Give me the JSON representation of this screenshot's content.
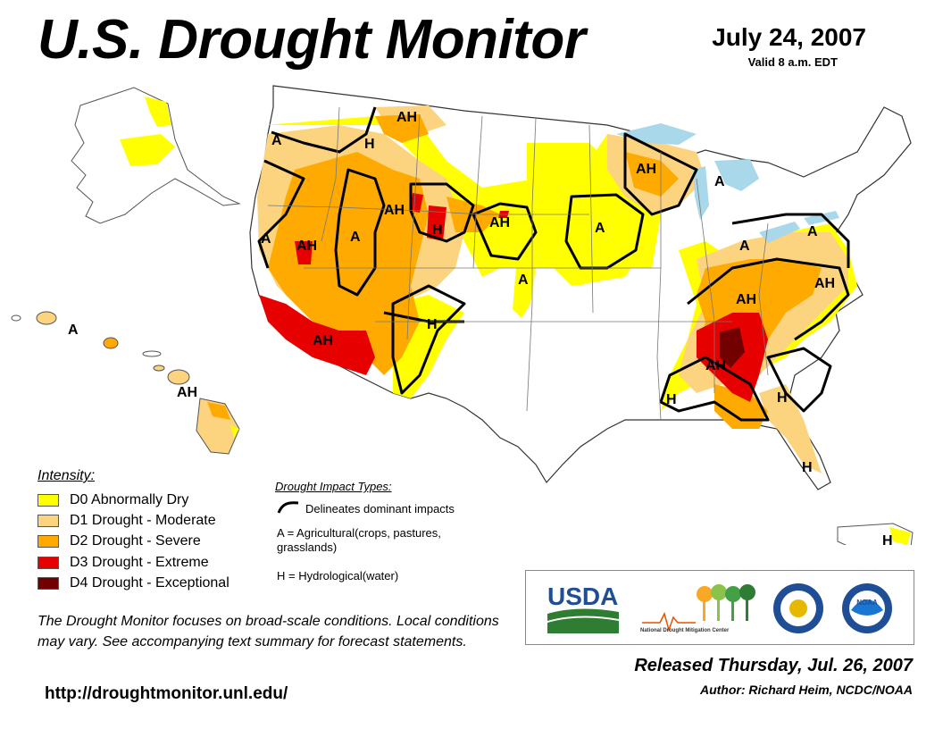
{
  "title": "U.S. Drought Monitor",
  "date": "July 24, 2007",
  "valid_time": "Valid 8 a.m. EDT",
  "legend": {
    "title": "Intensity:",
    "items": [
      {
        "code": "D0",
        "label": "D0 Abnormally Dry",
        "color": "#ffff00"
      },
      {
        "code": "D1",
        "label": "D1 Drought - Moderate",
        "color": "#fcd37f"
      },
      {
        "code": "D2",
        "label": "D2 Drought - Severe",
        "color": "#ffaa00"
      },
      {
        "code": "D3",
        "label": "D3 Drought - Extreme",
        "color": "#e60000"
      },
      {
        "code": "D4",
        "label": "D4 Drought - Exceptional",
        "color": "#730000"
      }
    ]
  },
  "impacts": {
    "title": "Drought Impact Types:",
    "line_label": "Delineates dominant impacts",
    "agricultural": "A = Agricultural(crops, pastures, grasslands)",
    "hydrological": "H = Hydrological(water)"
  },
  "note": "The Drought Monitor focuses on broad-scale conditions. Local conditions may vary. See accompanying text summary for forecast statements.",
  "url": "http://droughtmonitor.unl.edu/",
  "released": "Released Thursday, Jul. 26, 2007",
  "author": "Author: Richard Heim, NCDC/NOAA",
  "logos": {
    "usda": "USDA",
    "ndmc": "National Drought Mitigation Center",
    "doc_seal": "Department of Commerce seal",
    "noaa": "NOAA"
  },
  "map_labels": {
    "pacific_nw": "A",
    "n_idaho": "H",
    "montana": "AH",
    "california": "A",
    "nevada": "AH",
    "utah": "A",
    "wyoming_w": "AH",
    "wyoming_e": "H",
    "dakotas": "AH",
    "minnesota": "A",
    "wisconsin": "AH",
    "michigan": "A",
    "ohio": "A",
    "pennsylvania": "A",
    "virginia": "AH",
    "kansas": "A",
    "colorado": "H",
    "arizona": "AH",
    "kentucky": "AH",
    "alabama": "AH",
    "mississippi": "H",
    "carolinas": "H",
    "florida": "H",
    "hawaii_w": "A",
    "hawaii_e": "AH",
    "puerto_rico": "H"
  }
}
